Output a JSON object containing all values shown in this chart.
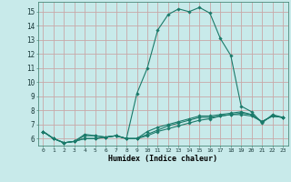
{
  "xlabel": "Humidex (Indice chaleur)",
  "bg_color": "#c8eaea",
  "grid_color": "#c8a8a8",
  "line_color": "#1a7a6a",
  "xlim": [
    -0.5,
    23.5
  ],
  "ylim": [
    5.5,
    15.7
  ],
  "xticks": [
    0,
    1,
    2,
    3,
    4,
    5,
    6,
    7,
    8,
    9,
    10,
    11,
    12,
    13,
    14,
    15,
    16,
    17,
    18,
    19,
    20,
    21,
    22,
    23
  ],
  "yticks": [
    6,
    7,
    8,
    9,
    10,
    11,
    12,
    13,
    14,
    15
  ],
  "series": [
    [
      6.5,
      6.0,
      5.7,
      5.8,
      6.3,
      6.2,
      6.1,
      6.2,
      6.0,
      9.2,
      11.0,
      13.7,
      14.8,
      15.2,
      15.0,
      15.3,
      14.9,
      13.1,
      11.9,
      8.3,
      7.9,
      7.1,
      7.7,
      7.5
    ],
    [
      6.5,
      6.0,
      5.7,
      5.8,
      6.0,
      6.0,
      6.1,
      6.2,
      6.0,
      6.0,
      6.2,
      6.5,
      6.7,
      6.9,
      7.1,
      7.3,
      7.4,
      7.6,
      7.7,
      7.8,
      7.7,
      7.2,
      7.6,
      7.5
    ],
    [
      6.5,
      6.0,
      5.7,
      5.8,
      6.0,
      6.0,
      6.1,
      6.2,
      6.0,
      6.0,
      6.3,
      6.6,
      6.9,
      7.1,
      7.3,
      7.5,
      7.5,
      7.6,
      7.7,
      7.7,
      7.6,
      7.2,
      7.6,
      7.5
    ],
    [
      6.5,
      6.0,
      5.7,
      5.8,
      6.2,
      6.2,
      6.1,
      6.2,
      6.0,
      6.0,
      6.5,
      6.8,
      7.0,
      7.2,
      7.4,
      7.6,
      7.6,
      7.7,
      7.8,
      7.9,
      7.7,
      7.2,
      7.6,
      7.5
    ]
  ]
}
